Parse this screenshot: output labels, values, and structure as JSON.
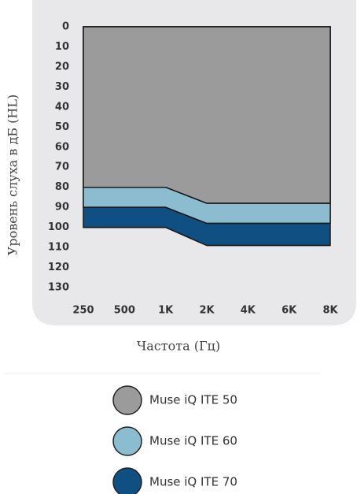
{
  "chart_data": {
    "type": "area",
    "xlabel": "Частота (Гц)",
    "ylabel": "Уровень слуха в дБ (HL)",
    "categories": [
      "250",
      "500",
      "1K",
      "2K",
      "4K",
      "6K",
      "8K"
    ],
    "ylim": [
      0,
      130
    ],
    "inverted_y": true,
    "yticks": [
      0,
      10,
      20,
      30,
      40,
      50,
      60,
      70,
      80,
      90,
      100,
      110,
      120,
      130
    ],
    "series": [
      {
        "name": "Muse iQ ITE 50",
        "color": "#9b9b9b",
        "values": [
          80,
          80,
          80,
          88,
          88,
          88,
          88
        ]
      },
      {
        "name": "Muse iQ ITE 60",
        "color": "#8bbcd0",
        "values": [
          90,
          90,
          90,
          98,
          98,
          98,
          98
        ]
      },
      {
        "name": "Muse iQ ITE 70",
        "color": "#0f4f82",
        "values": [
          100,
          100,
          100,
          109,
          109,
          109,
          109
        ]
      }
    ]
  }
}
